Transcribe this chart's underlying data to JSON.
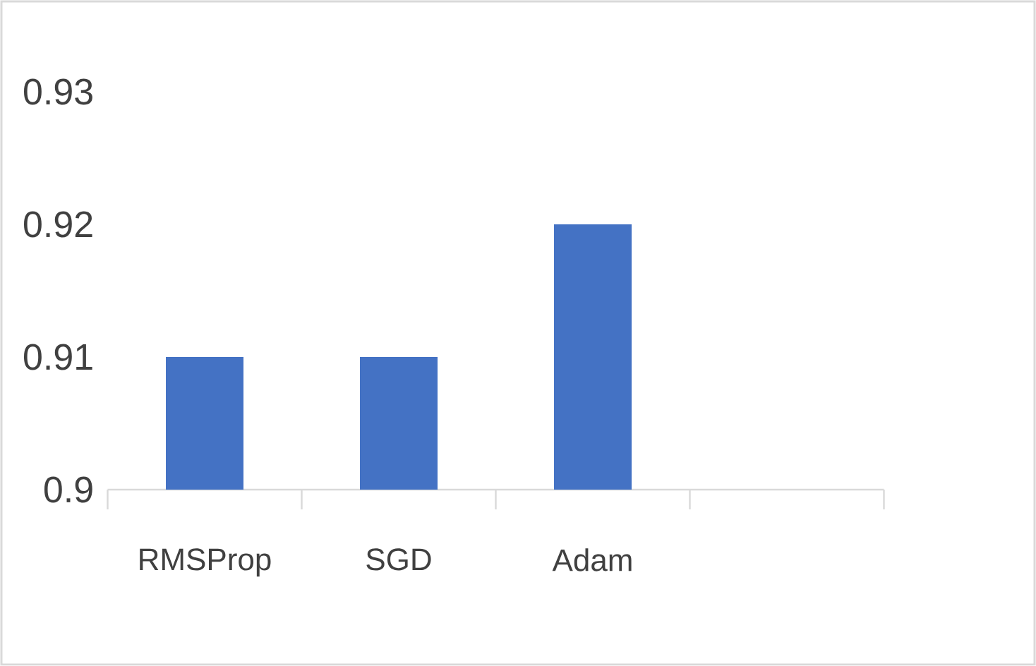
{
  "chart_data": {
    "type": "bar",
    "categories": [
      "RMSProp",
      "SGD",
      "Adam",
      null
    ],
    "values": [
      0.91,
      0.91,
      0.92,
      null
    ],
    "color": "#4472c4",
    "ylim": [
      0.9,
      0.93
    ],
    "yticks": [
      0.9,
      0.91,
      0.92,
      0.93
    ]
  }
}
